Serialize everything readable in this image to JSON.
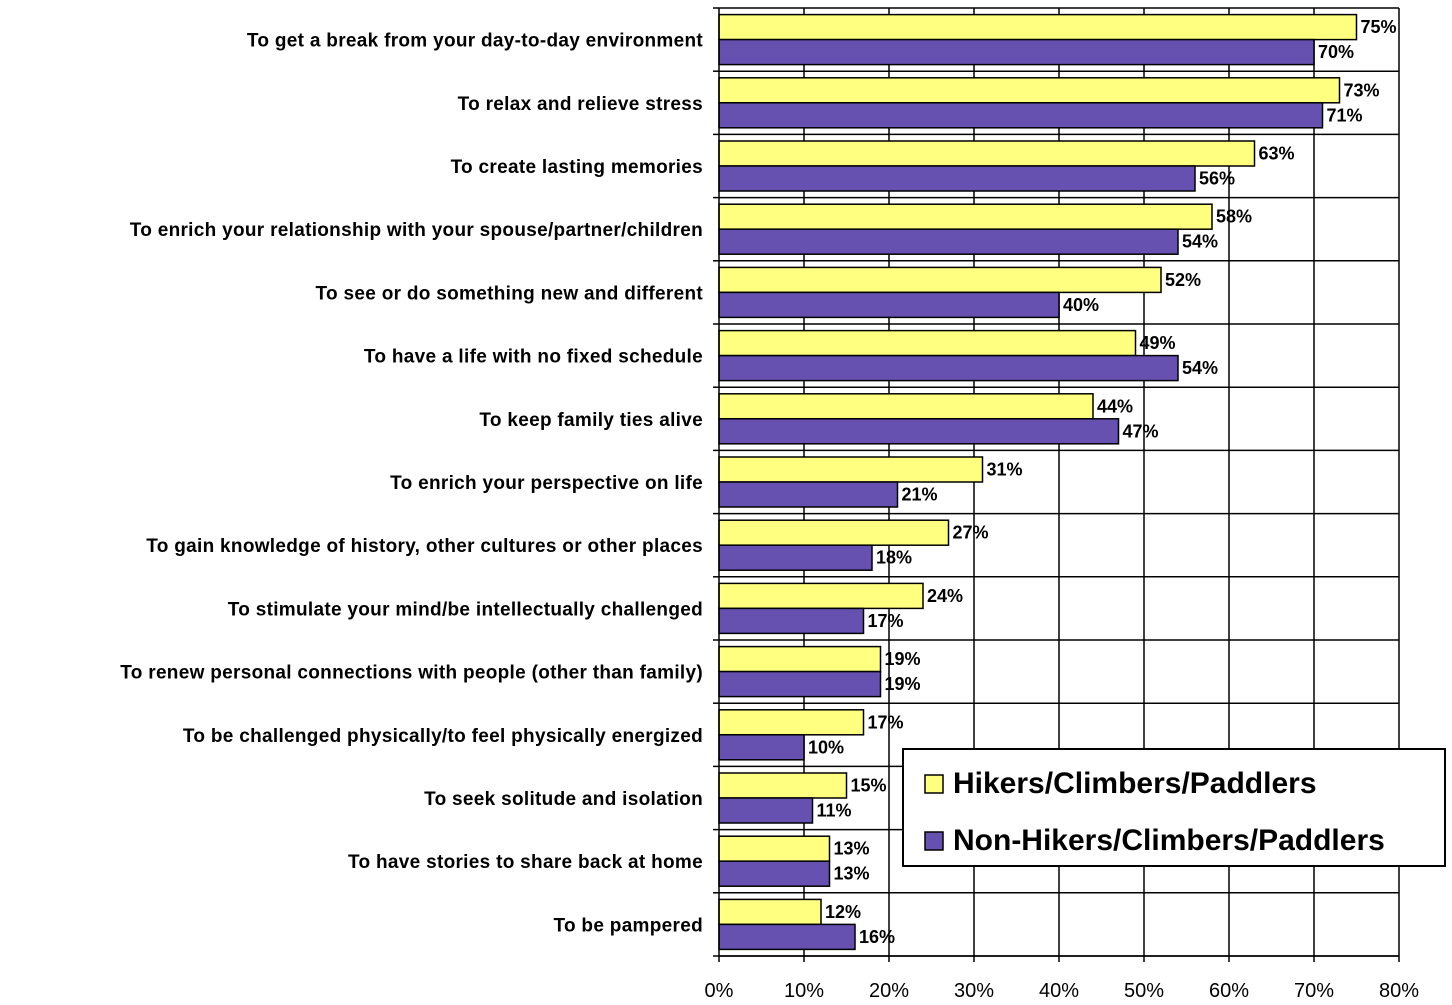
{
  "chart_data": {
    "type": "bar",
    "orientation": "horizontal",
    "categories": [
      "To get a break from your day-to-day environment",
      "To relax and relieve stress",
      "To create lasting memories",
      "To enrich your relationship with your spouse/partner/children",
      "To see or do something new and different",
      "To have a life with no fixed schedule",
      "To keep family ties alive",
      "To enrich your perspective on life",
      "To gain knowledge of history, other cultures or other places",
      "To stimulate your mind/be intellectually challenged",
      "To renew personal connections with people (other than family)",
      "To be challenged physically/to feel physically energized",
      "To seek solitude and isolation",
      "To have stories to share back at home",
      "To be pampered"
    ],
    "series": [
      {
        "name": "Hikers/Climbers/Paddlers",
        "color": "#FFFF80",
        "values": [
          75,
          73,
          63,
          58,
          52,
          49,
          44,
          31,
          27,
          24,
          19,
          17,
          15,
          13,
          12
        ],
        "labels": [
          "75%",
          "73%",
          "63%",
          "58%",
          "52%",
          "49%",
          "44%",
          "31%",
          "27%",
          "24%",
          "19%",
          "17%",
          "15%",
          "13%",
          "12%"
        ]
      },
      {
        "name": "Non-Hikers/Climbers/Paddlers",
        "color": "#6650B0",
        "values": [
          70,
          71,
          56,
          54,
          40,
          54,
          47,
          21,
          18,
          17,
          19,
          10,
          11,
          13,
          16
        ],
        "labels": [
          "70%",
          "71%",
          "56%",
          "54%",
          "40%",
          "54%",
          "47%",
          "21%",
          "18%",
          "17%",
          "19%",
          "10%",
          "11%",
          "13%",
          "16%"
        ]
      }
    ],
    "xlim": [
      0,
      80
    ],
    "xticks": [
      "0%",
      "10%",
      "20%",
      "30%",
      "40%",
      "50%",
      "60%",
      "70%",
      "80%"
    ],
    "grid": true,
    "legend_position": "lower-right"
  }
}
